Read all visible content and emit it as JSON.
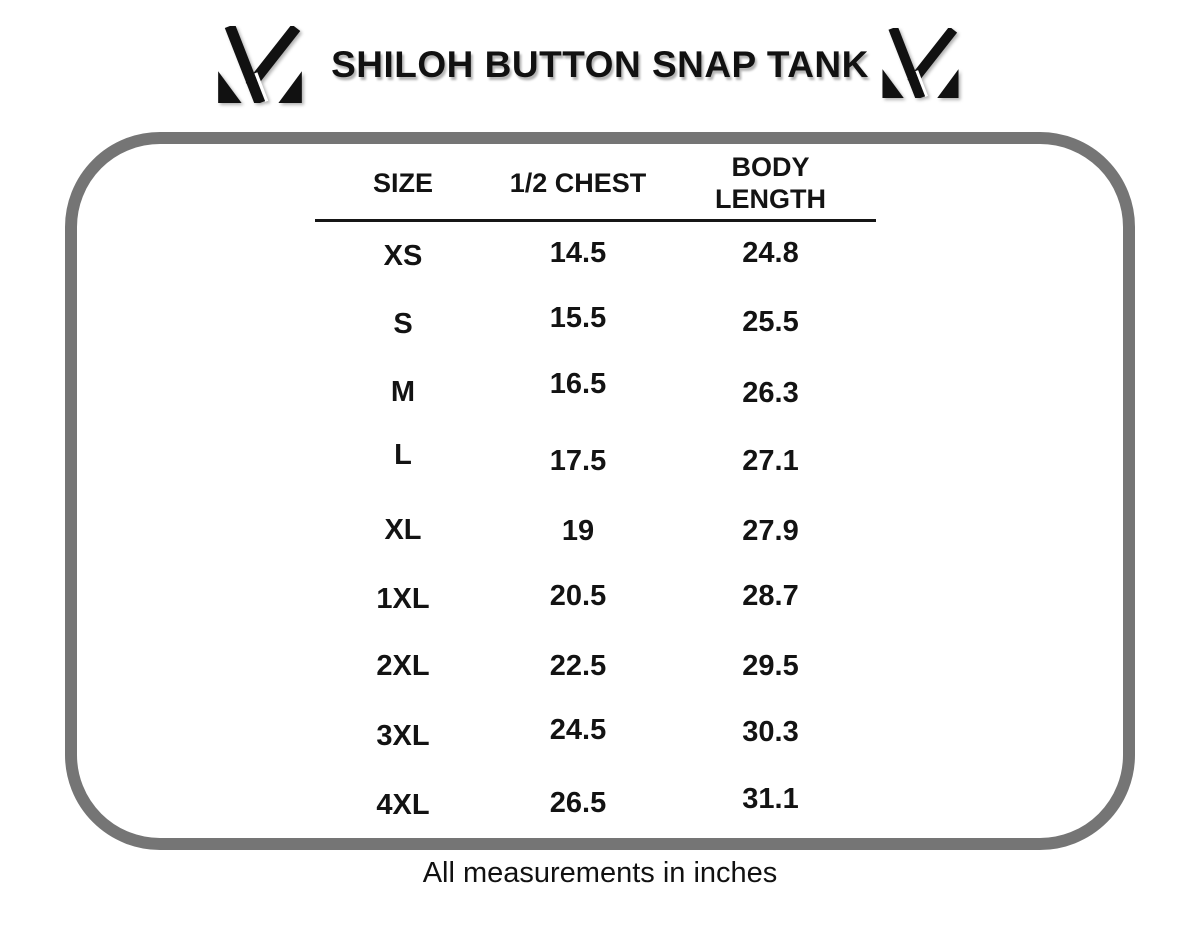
{
  "header": {
    "title": "SHILOH BUTTON SNAP TANK",
    "brand_logo": "m-monogram-icon"
  },
  "size_chart": {
    "columns": [
      "SIZE",
      "1/2 CHEST",
      "BODY LENGTH"
    ],
    "rows": [
      {
        "size": "XS",
        "half_chest": "14.5",
        "body_length": "24.8"
      },
      {
        "size": "S",
        "half_chest": "15.5",
        "body_length": "25.5"
      },
      {
        "size": "M",
        "half_chest": "16.5",
        "body_length": "26.3"
      },
      {
        "size": "L",
        "half_chest": "17.5",
        "body_length": "27.1"
      },
      {
        "size": "XL",
        "half_chest": "19",
        "body_length": "27.9"
      },
      {
        "size": "1XL",
        "half_chest": "20.5",
        "body_length": "28.7"
      },
      {
        "size": "2XL",
        "half_chest": "22.5",
        "body_length": "29.5"
      },
      {
        "size": "3XL",
        "half_chest": "24.5",
        "body_length": "30.3"
      },
      {
        "size": "4XL",
        "half_chest": "26.5",
        "body_length": "31.1"
      }
    ]
  },
  "footer": {
    "note": "All measurements in inches"
  },
  "colors": {
    "frame_gray": "#757575",
    "text_black": "#111111",
    "background": "#ffffff"
  },
  "chart_data": {
    "type": "table",
    "title": "SHILOH BUTTON SNAP TANK",
    "columns": [
      "SIZE",
      "1/2 CHEST",
      "BODY LENGTH"
    ],
    "rows": [
      [
        "XS",
        14.5,
        24.8
      ],
      [
        "S",
        15.5,
        25.5
      ],
      [
        "M",
        16.5,
        26.3
      ],
      [
        "L",
        17.5,
        27.1
      ],
      [
        "XL",
        19,
        27.9
      ],
      [
        "1XL",
        20.5,
        28.7
      ],
      [
        "2XL",
        22.5,
        29.5
      ],
      [
        "3XL",
        24.5,
        30.3
      ],
      [
        "4XL",
        26.5,
        31.1
      ]
    ],
    "units": "inches",
    "note": "All measurements in inches"
  }
}
